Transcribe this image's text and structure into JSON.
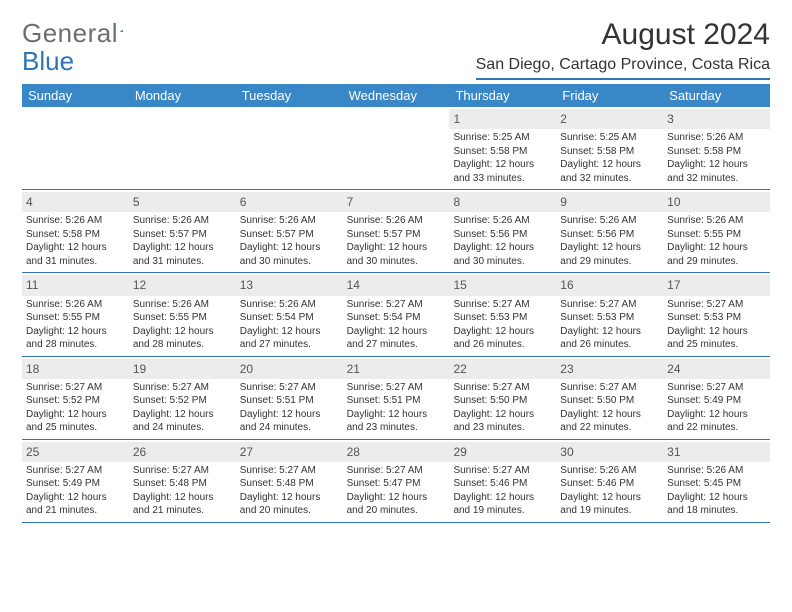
{
  "brand": {
    "name1": "General",
    "name2": "Blue"
  },
  "title": "August 2024",
  "location": "San Diego, Cartago Province, Costa Rica",
  "colors": {
    "accent": "#2e75b6",
    "header_bg": "#3a87c7",
    "daynum_bg": "#ececec",
    "text": "#333333"
  },
  "dow": [
    "Sunday",
    "Monday",
    "Tuesday",
    "Wednesday",
    "Thursday",
    "Friday",
    "Saturday"
  ],
  "weeks": [
    [
      {
        "n": "",
        "empty": true
      },
      {
        "n": "",
        "empty": true
      },
      {
        "n": "",
        "empty": true
      },
      {
        "n": "",
        "empty": true
      },
      {
        "n": "1",
        "sunrise": "5:25 AM",
        "sunset": "5:58 PM",
        "daylight": "12 hours and 33 minutes."
      },
      {
        "n": "2",
        "sunrise": "5:25 AM",
        "sunset": "5:58 PM",
        "daylight": "12 hours and 32 minutes."
      },
      {
        "n": "3",
        "sunrise": "5:26 AM",
        "sunset": "5:58 PM",
        "daylight": "12 hours and 32 minutes."
      }
    ],
    [
      {
        "n": "4",
        "sunrise": "5:26 AM",
        "sunset": "5:58 PM",
        "daylight": "12 hours and 31 minutes."
      },
      {
        "n": "5",
        "sunrise": "5:26 AM",
        "sunset": "5:57 PM",
        "daylight": "12 hours and 31 minutes."
      },
      {
        "n": "6",
        "sunrise": "5:26 AM",
        "sunset": "5:57 PM",
        "daylight": "12 hours and 30 minutes."
      },
      {
        "n": "7",
        "sunrise": "5:26 AM",
        "sunset": "5:57 PM",
        "daylight": "12 hours and 30 minutes."
      },
      {
        "n": "8",
        "sunrise": "5:26 AM",
        "sunset": "5:56 PM",
        "daylight": "12 hours and 30 minutes."
      },
      {
        "n": "9",
        "sunrise": "5:26 AM",
        "sunset": "5:56 PM",
        "daylight": "12 hours and 29 minutes."
      },
      {
        "n": "10",
        "sunrise": "5:26 AM",
        "sunset": "5:55 PM",
        "daylight": "12 hours and 29 minutes."
      }
    ],
    [
      {
        "n": "11",
        "sunrise": "5:26 AM",
        "sunset": "5:55 PM",
        "daylight": "12 hours and 28 minutes."
      },
      {
        "n": "12",
        "sunrise": "5:26 AM",
        "sunset": "5:55 PM",
        "daylight": "12 hours and 28 minutes."
      },
      {
        "n": "13",
        "sunrise": "5:26 AM",
        "sunset": "5:54 PM",
        "daylight": "12 hours and 27 minutes."
      },
      {
        "n": "14",
        "sunrise": "5:27 AM",
        "sunset": "5:54 PM",
        "daylight": "12 hours and 27 minutes."
      },
      {
        "n": "15",
        "sunrise": "5:27 AM",
        "sunset": "5:53 PM",
        "daylight": "12 hours and 26 minutes."
      },
      {
        "n": "16",
        "sunrise": "5:27 AM",
        "sunset": "5:53 PM",
        "daylight": "12 hours and 26 minutes."
      },
      {
        "n": "17",
        "sunrise": "5:27 AM",
        "sunset": "5:53 PM",
        "daylight": "12 hours and 25 minutes."
      }
    ],
    [
      {
        "n": "18",
        "sunrise": "5:27 AM",
        "sunset": "5:52 PM",
        "daylight": "12 hours and 25 minutes."
      },
      {
        "n": "19",
        "sunrise": "5:27 AM",
        "sunset": "5:52 PM",
        "daylight": "12 hours and 24 minutes."
      },
      {
        "n": "20",
        "sunrise": "5:27 AM",
        "sunset": "5:51 PM",
        "daylight": "12 hours and 24 minutes."
      },
      {
        "n": "21",
        "sunrise": "5:27 AM",
        "sunset": "5:51 PM",
        "daylight": "12 hours and 23 minutes."
      },
      {
        "n": "22",
        "sunrise": "5:27 AM",
        "sunset": "5:50 PM",
        "daylight": "12 hours and 23 minutes."
      },
      {
        "n": "23",
        "sunrise": "5:27 AM",
        "sunset": "5:50 PM",
        "daylight": "12 hours and 22 minutes."
      },
      {
        "n": "24",
        "sunrise": "5:27 AM",
        "sunset": "5:49 PM",
        "daylight": "12 hours and 22 minutes."
      }
    ],
    [
      {
        "n": "25",
        "sunrise": "5:27 AM",
        "sunset": "5:49 PM",
        "daylight": "12 hours and 21 minutes."
      },
      {
        "n": "26",
        "sunrise": "5:27 AM",
        "sunset": "5:48 PM",
        "daylight": "12 hours and 21 minutes."
      },
      {
        "n": "27",
        "sunrise": "5:27 AM",
        "sunset": "5:48 PM",
        "daylight": "12 hours and 20 minutes."
      },
      {
        "n": "28",
        "sunrise": "5:27 AM",
        "sunset": "5:47 PM",
        "daylight": "12 hours and 20 minutes."
      },
      {
        "n": "29",
        "sunrise": "5:27 AM",
        "sunset": "5:46 PM",
        "daylight": "12 hours and 19 minutes."
      },
      {
        "n": "30",
        "sunrise": "5:26 AM",
        "sunset": "5:46 PM",
        "daylight": "12 hours and 19 minutes."
      },
      {
        "n": "31",
        "sunrise": "5:26 AM",
        "sunset": "5:45 PM",
        "daylight": "12 hours and 18 minutes."
      }
    ]
  ],
  "labels": {
    "sunrise": "Sunrise: ",
    "sunset": "Sunset: ",
    "daylight": "Daylight: "
  }
}
